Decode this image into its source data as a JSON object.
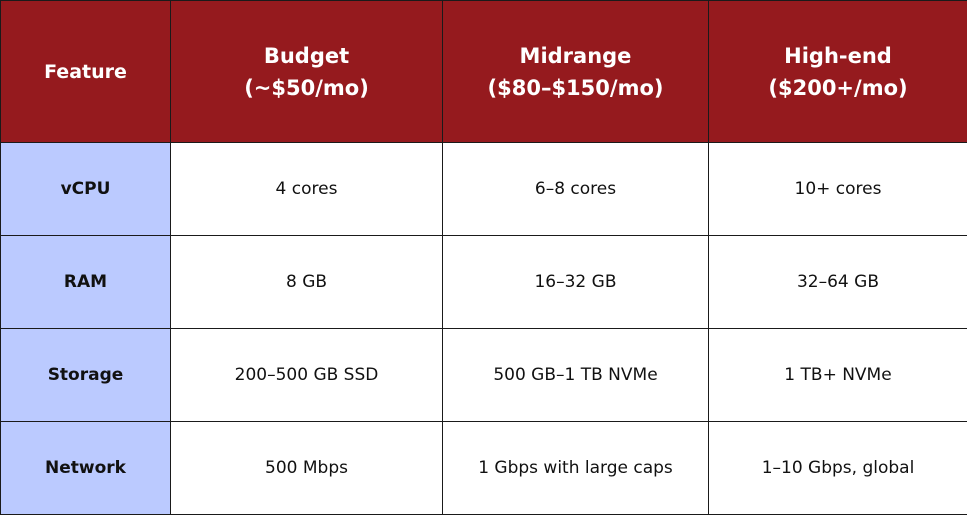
{
  "colors": {
    "header_bg": "#951a1e",
    "header_text": "#ffffff",
    "row_header_bg": "#bbcaff",
    "cell_bg": "#ffffff",
    "border": "#1a1a1a"
  },
  "table": {
    "corner_label": "Feature",
    "columns": [
      {
        "name": "Budget",
        "price": "(~$50/mo)"
      },
      {
        "name": "Midrange",
        "price": "($80–$150/mo)"
      },
      {
        "name": "High-end",
        "price": "($200+/mo)"
      }
    ],
    "rows": [
      {
        "feature": "vCPU",
        "cells": [
          "4 cores",
          "6–8 cores",
          "10+ cores"
        ]
      },
      {
        "feature": "RAM",
        "cells": [
          "8 GB",
          "16–32 GB",
          "32–64 GB"
        ]
      },
      {
        "feature": "Storage",
        "cells": [
          "200–500 GB SSD",
          "500 GB–1 TB NVMe",
          "1 TB+ NVMe"
        ]
      },
      {
        "feature": "Network",
        "cells": [
          "500 Mbps",
          "1 Gbps with large caps",
          "1–10 Gbps, global"
        ]
      }
    ]
  }
}
